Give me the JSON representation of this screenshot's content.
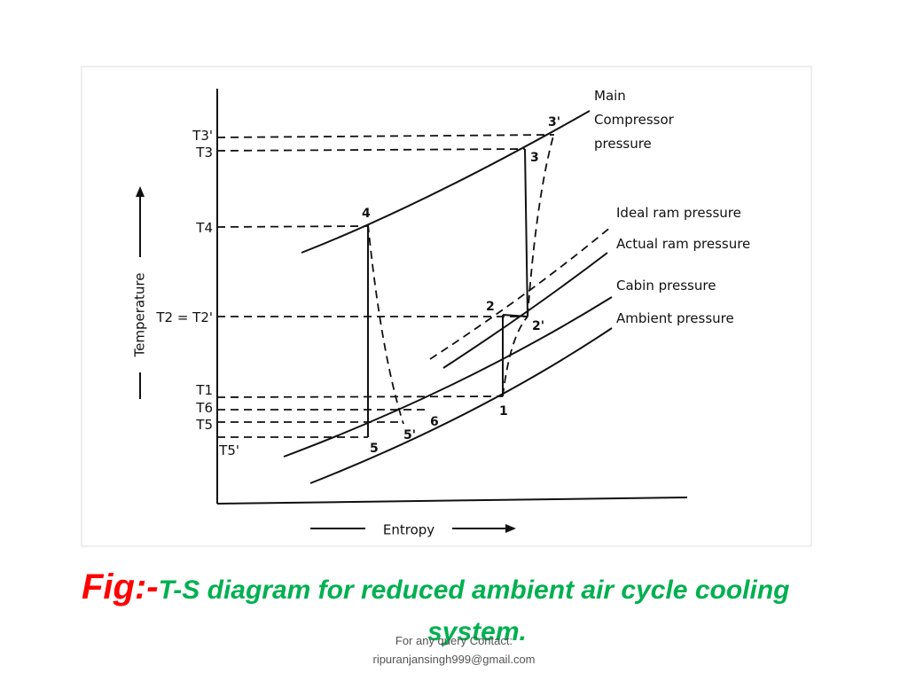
{
  "figure": {
    "axes": {
      "y_label": "Temperature",
      "x_label": "Entropy"
    },
    "curve_labels": {
      "main": [
        "Main",
        "Compressor",
        "pressure"
      ],
      "ideal_ram": "Ideal ram pressure",
      "actual_ram": "Actual ram pressure",
      "cabin": "Cabin pressure",
      "ambient": "Ambient pressure"
    },
    "points": {
      "p3p": "3'",
      "p3": "3",
      "p4": "4",
      "p2": "2",
      "p2p": "2'",
      "p1": "1",
      "p6": "6",
      "p5p": "5'",
      "p5": "5"
    },
    "levels": {
      "t3p": "T3'",
      "t3": "T3",
      "t4": "T4",
      "t2": "T2 = T2'",
      "t1": "T1",
      "t6": "T6",
      "t5": "T5",
      "t5p": "T5'"
    }
  },
  "caption": {
    "prefix": "Fig:-",
    "line1": "T-S diagram for reduced ambient air cycle cooling",
    "line2": "system."
  },
  "footer": {
    "line1": "For any query Contact:",
    "line2": "ripuranjansingh999@gmail.com"
  }
}
